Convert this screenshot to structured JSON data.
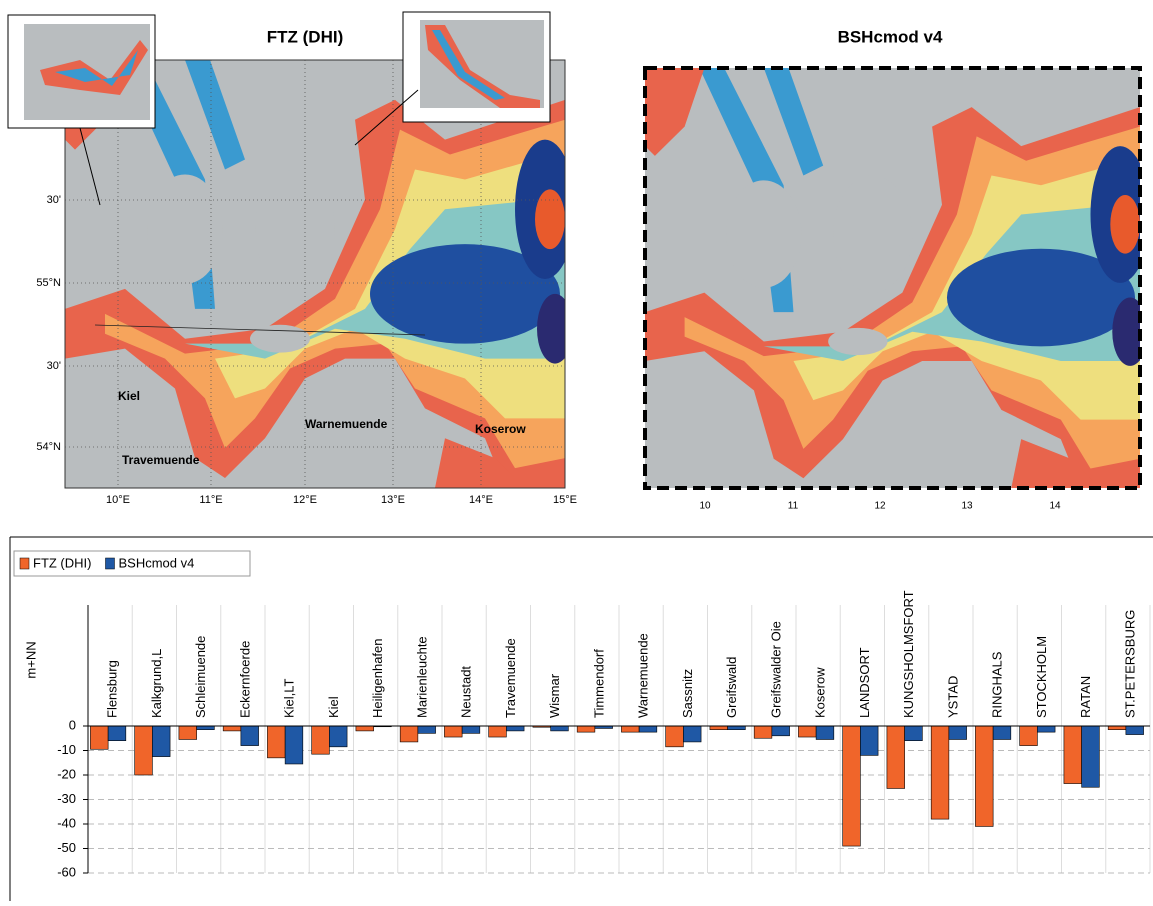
{
  "maps": [
    {
      "title": "FTZ (DHI)",
      "x_labels": [
        "10°E",
        "11°E",
        "12°E",
        "13°E",
        "14°E",
        "15°E"
      ],
      "y_labels": [
        "30'",
        "55°N",
        "30'",
        "54°N"
      ],
      "places": [
        "Kiel",
        "Travemuende",
        "Warnemuende",
        "Koserow"
      ]
    },
    {
      "title": "BSHcmod v4",
      "x_labels": [
        "10",
        "11",
        "12",
        "13",
        "14"
      ]
    }
  ],
  "chart_data": {
    "type": "bar",
    "ylabel": "m+NN",
    "categories": [
      "Flensburg",
      "Kalkgrund,L",
      "Schleimuende",
      "Eckernfoerde",
      "Kiel,LT",
      "Kiel",
      "Heiligenhafen",
      "Marienleuchte",
      "Neustadt",
      "Travemuende",
      "Wismar",
      "Timmendorf",
      "Warnemuende",
      "Sassnitz",
      "Greifswald",
      "Greifswalder Oie",
      "Koserow",
      "LANDSORT",
      "KUNGSHOLMSFORT",
      "YSTAD",
      "RINGHALS",
      "STOCKHOLM",
      "RATAN",
      "ST.PETERSBURG"
    ],
    "series": [
      {
        "name": "FTZ (DHI)",
        "color": "#f0652a",
        "values": [
          -9.5,
          -20,
          -5.5,
          -2,
          -13,
          -11.5,
          -2,
          -6.5,
          -4.5,
          -4.5,
          -0.5,
          -2.5,
          -2.5,
          -8.5,
          -1.5,
          -5,
          -4.5,
          -49,
          -25.5,
          -38,
          -41,
          -8,
          -23.5,
          -1.5
        ]
      },
      {
        "name": "BSHcmod v4",
        "color": "#1f58a5",
        "values": [
          -6,
          -12.5,
          -1.5,
          -8,
          -15.5,
          -8.5,
          -0.3,
          -3,
          -3,
          -2,
          -2,
          -1,
          -2.5,
          -6.5,
          -1.5,
          -4,
          -5.5,
          -12,
          -6,
          -5.5,
          -5.5,
          -2.5,
          -25,
          -3.5
        ]
      }
    ],
    "ylim": [
      -60,
      0
    ],
    "yticks": [
      0,
      -10,
      -20,
      -30,
      -40,
      -50,
      -60
    ],
    "grid": true,
    "legend": "top-left"
  }
}
